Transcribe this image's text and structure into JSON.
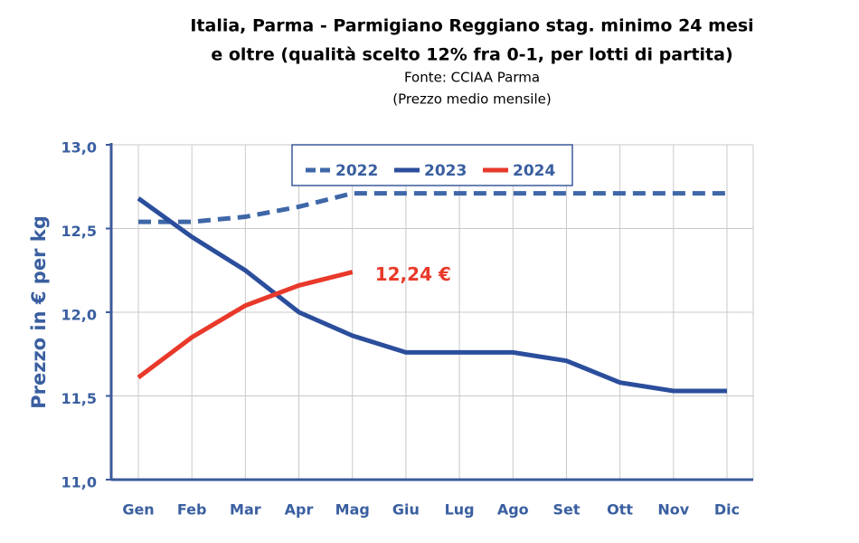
{
  "chart_data": {
    "type": "line",
    "title": [
      "Italia, Parma - Parmigiano Reggiano stag. minimo 24 mesi",
      "e oltre (qualità scelto 12% fra 0-1, per lotti di partita)"
    ],
    "subtitle": [
      "Fonte: CCIAA Parma",
      "(Prezzo medio mensile)"
    ],
    "y_label": "Prezzo in € per kg",
    "categories": [
      "Gen",
      "Feb",
      "Mar",
      "Apr",
      "Mag",
      "Giu",
      "Lug",
      "Ago",
      "Set",
      "Ott",
      "Nov",
      "Dic"
    ],
    "series": [
      {
        "name": "2022",
        "color": "#3f67a8",
        "dashed": true,
        "values": [
          12.54,
          12.54,
          12.57,
          12.63,
          12.71,
          12.71,
          12.71,
          12.71,
          12.71,
          12.71,
          12.71,
          12.71
        ]
      },
      {
        "name": "2023",
        "color": "#2b4e9c",
        "dashed": false,
        "values": [
          12.68,
          12.45,
          12.25,
          12.0,
          11.86,
          11.76,
          11.76,
          11.76,
          11.71,
          11.58,
          11.53,
          11.53
        ]
      },
      {
        "name": "2024",
        "color": "#e8392a",
        "dashed": false,
        "values": [
          11.61,
          11.85,
          12.04,
          12.16,
          12.24,
          null,
          null,
          null,
          null,
          null,
          null,
          null
        ]
      }
    ],
    "annotations": [
      {
        "text": "12,24 €",
        "series": 2,
        "index": 4
      }
    ],
    "ylim": [
      11.0,
      13.0
    ],
    "yticks": [
      {
        "value": 11.0,
        "label": "11,0"
      },
      {
        "value": 11.5,
        "label": "11,5"
      },
      {
        "value": 12.0,
        "label": "12,0"
      },
      {
        "value": 12.5,
        "label": "12,5"
      },
      {
        "value": 13.0,
        "label": "13,0"
      }
    ],
    "grid": true,
    "legend": "top"
  }
}
